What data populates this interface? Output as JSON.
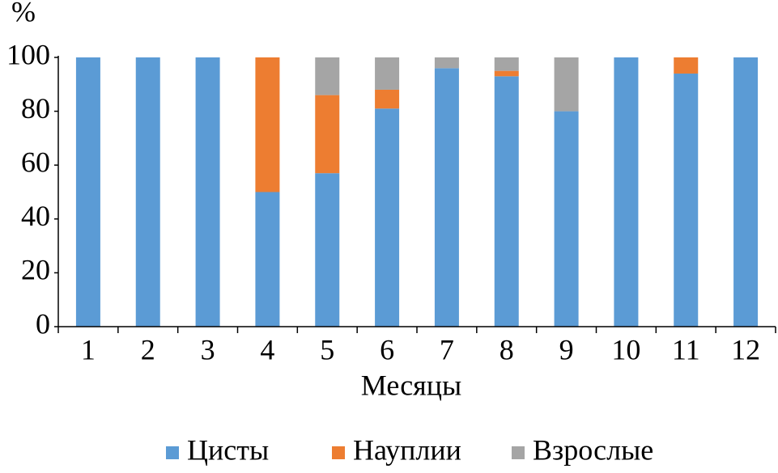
{
  "chart_data": {
    "type": "stacked_bar",
    "title": "%",
    "x_label": "Месяцы",
    "categories": [
      "1",
      "2",
      "3",
      "4",
      "5",
      "6",
      "7",
      "8",
      "9",
      "10",
      "11",
      "12"
    ],
    "series": [
      {
        "name": "Цисты",
        "color": "#5b9bd5",
        "values": [
          100,
          100,
          100,
          50,
          57,
          81,
          96,
          93,
          80,
          100,
          94,
          100
        ]
      },
      {
        "name": "Науплии",
        "color": "#ed7d31",
        "values": [
          0,
          0,
          0,
          50,
          29,
          7,
          0,
          2,
          0,
          0,
          6,
          0
        ]
      },
      {
        "name": "Взрослые",
        "color": "#a5a5a5",
        "values": [
          0,
          0,
          0,
          0,
          14,
          12,
          4,
          5,
          20,
          0,
          0,
          0
        ]
      }
    ],
    "ylim": [
      0,
      100
    ],
    "yticks": [
      0,
      20,
      40,
      60,
      80,
      100
    ],
    "grid": false
  }
}
